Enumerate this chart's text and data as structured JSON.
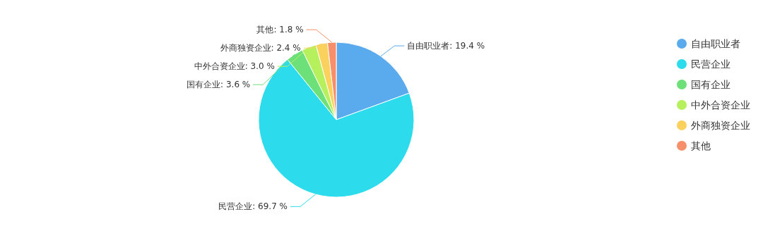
{
  "chart_data": {
    "type": "pie",
    "categories": [
      "自由职业者",
      "民营企业",
      "国有企业",
      "中外合资企业",
      "外商独资企业",
      "其他"
    ],
    "values": [
      19.4,
      69.7,
      3.6,
      3.0,
      2.4,
      1.8
    ],
    "value_labels": [
      "自由职业者: 19.4 %",
      "民营企业: 69.7 %",
      "国有企业: 3.6 %",
      "中外合资企业: 3.0 %",
      "外商独资企业: 2.4 %",
      "其他: 1.8 %"
    ],
    "colors": [
      "#5aaaee",
      "#2ddcec",
      "#6ee07a",
      "#b6f05c",
      "#fbd15e",
      "#f7906a"
    ],
    "legend": "right"
  }
}
